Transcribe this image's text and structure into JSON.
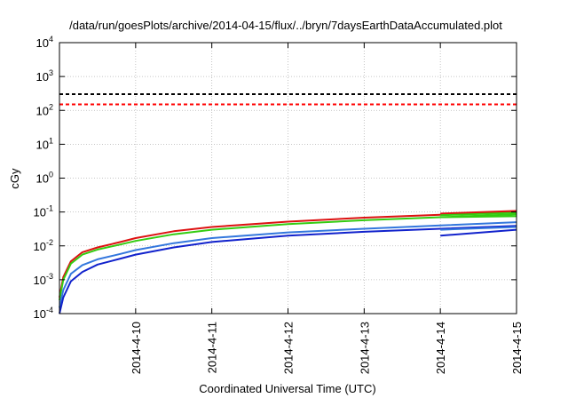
{
  "chart_data": {
    "type": "line",
    "title": "/data/run/goesPlots/archive/2014-04-15/flux/../bryn/7daysEarthDataAccumulated.plot",
    "xlabel": "Coordinated Universal Time (UTC)",
    "ylabel": "cGy",
    "yscale": "log",
    "ylim": [
      0.0001,
      10000
    ],
    "xlim": [
      0,
      6
    ],
    "grid": true,
    "x_tick_labels": [
      "2014-4-10",
      "2014-4-11",
      "2014-4-12",
      "2014-4-13",
      "2014-4-14",
      "2014-4-15"
    ],
    "x_tick_values": [
      1,
      2,
      3,
      4,
      5,
      6
    ],
    "y_ticks": [
      {
        "value": 0.0001,
        "base": "10",
        "exp": "-4"
      },
      {
        "value": 0.001,
        "base": "10",
        "exp": "-3"
      },
      {
        "value": 0.01,
        "base": "10",
        "exp": "-2"
      },
      {
        "value": 0.1,
        "base": "10",
        "exp": "-1"
      },
      {
        "value": 1,
        "base": "10",
        "exp": "0"
      },
      {
        "value": 10,
        "base": "10",
        "exp": "1"
      },
      {
        "value": 100,
        "base": "10",
        "exp": "2"
      },
      {
        "value": 1000,
        "base": "10",
        "exp": "3"
      },
      {
        "value": 10000,
        "base": "10",
        "exp": "4"
      }
    ],
    "reference_lines": [
      {
        "value": 300,
        "color": "#000000",
        "dash": true
      },
      {
        "value": 150,
        "color": "#ff0000",
        "dash": true
      }
    ],
    "series": [
      {
        "color": "#dd1111",
        "x": [
          0,
          0.05,
          0.15,
          0.3,
          0.5,
          0.8,
          1.0,
          1.5,
          2,
          3,
          4,
          5,
          6
        ],
        "y": [
          0.0003,
          0.0012,
          0.0035,
          0.0065,
          0.009,
          0.013,
          0.017,
          0.027,
          0.036,
          0.052,
          0.068,
          0.083,
          0.105
        ]
      },
      {
        "color": "#33cc11",
        "x": [
          0,
          0.05,
          0.15,
          0.3,
          0.5,
          0.8,
          1.0,
          1.5,
          2,
          3,
          4,
          5,
          6
        ],
        "y": [
          0.00025,
          0.001,
          0.003,
          0.0055,
          0.0078,
          0.011,
          0.014,
          0.022,
          0.03,
          0.044,
          0.057,
          0.07,
          0.085
        ]
      },
      {
        "color": "#3377dd",
        "x": [
          0,
          0.05,
          0.15,
          0.3,
          0.5,
          0.8,
          1.0,
          1.5,
          2,
          3,
          4,
          5,
          6
        ],
        "y": [
          0.00015,
          0.0005,
          0.0015,
          0.0027,
          0.004,
          0.0058,
          0.0075,
          0.012,
          0.017,
          0.025,
          0.032,
          0.04,
          0.05
        ]
      },
      {
        "color": "#1122cc",
        "x": [
          0,
          0.05,
          0.15,
          0.3,
          0.5,
          0.8,
          1.0,
          1.5,
          2,
          3,
          4,
          5,
          6
        ],
        "y": [
          0.0001,
          0.0003,
          0.0009,
          0.0017,
          0.0028,
          0.0042,
          0.0055,
          0.009,
          0.013,
          0.02,
          0.026,
          0.032,
          0.039
        ]
      },
      {
        "color": "#dd1111",
        "x": [
          5,
          6
        ],
        "y": [
          0.09,
          0.108
        ]
      },
      {
        "color": "#33cc11",
        "x": [
          5,
          6
        ],
        "y": [
          0.07,
          0.075
        ]
      },
      {
        "color": "#33cc11",
        "x": [
          5,
          6
        ],
        "y": [
          0.08,
          0.095
        ]
      },
      {
        "color": "#3377dd",
        "x": [
          5,
          6
        ],
        "y": [
          0.03,
          0.036
        ]
      },
      {
        "color": "#1122cc",
        "x": [
          5,
          6
        ],
        "y": [
          0.02,
          0.03
        ]
      }
    ]
  }
}
